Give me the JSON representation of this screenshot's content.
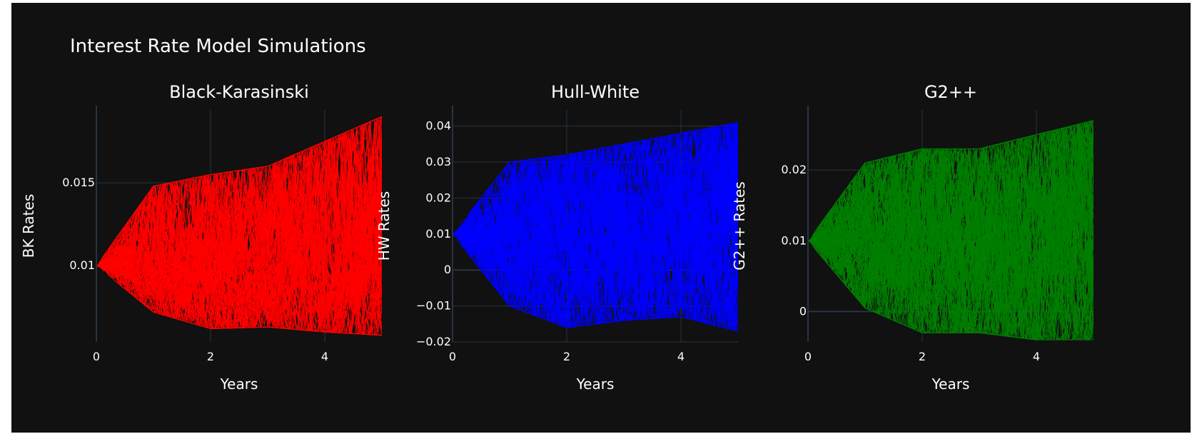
{
  "figure_title": "Interest Rate Model Simulations",
  "colors": {
    "background": "#111111",
    "grid": "#283442",
    "text": "#ffffff"
  },
  "chart_data": [
    {
      "type": "line",
      "title": "Black-Karasinski",
      "xlabel": "Years",
      "ylabel": "BK Rates",
      "xlim": [
        0,
        5
      ],
      "ylim": [
        0.0054,
        0.0194
      ],
      "xticks": [
        0,
        2,
        4
      ],
      "xtick_labels": [
        "0",
        "2",
        "4"
      ],
      "yticks": [
        0.01,
        0.015
      ],
      "ytick_labels": [
        "0.01",
        "0.015"
      ],
      "color": "#ff0000",
      "r0": 0.01,
      "num_paths": 100,
      "envelope_years": [
        0,
        1,
        2,
        3,
        4,
        5
      ],
      "envelope_upper": [
        0.01,
        0.0148,
        0.0155,
        0.016,
        0.0175,
        0.019
      ],
      "envelope_lower": [
        0.01,
        0.0072,
        0.0062,
        0.0063,
        0.006,
        0.0058
      ]
    },
    {
      "type": "line",
      "title": "Hull-White",
      "xlabel": "Years",
      "ylabel": "HW Rates",
      "xlim": [
        0,
        5
      ],
      "ylim": [
        -0.02,
        0.0445
      ],
      "xticks": [
        0,
        2,
        4
      ],
      "xtick_labels": [
        "0",
        "2",
        "4"
      ],
      "yticks": [
        -0.02,
        -0.01,
        0,
        0.01,
        0.02,
        0.03,
        0.04
      ],
      "ytick_labels": [
        "−0.02",
        "−0.01",
        "0",
        "0.01",
        "0.02",
        "0.03",
        "0.04"
      ],
      "color": "#0000ff",
      "r0": 0.01,
      "num_paths": 100,
      "envelope_years": [
        0,
        1,
        2,
        3,
        4,
        5
      ],
      "envelope_upper": [
        0.01,
        0.03,
        0.032,
        0.035,
        0.038,
        0.041
      ],
      "envelope_lower": [
        0.01,
        -0.01,
        -0.016,
        -0.014,
        -0.013,
        -0.017
      ]
    },
    {
      "type": "line",
      "title": "G2++",
      "xlabel": "Years",
      "ylabel": "G2++ Rates",
      "xlim": [
        0,
        5
      ],
      "ylim": [
        -0.0043,
        0.0285
      ],
      "xticks": [
        0,
        2,
        4
      ],
      "xtick_labels": [
        "0",
        "2",
        "4"
      ],
      "yticks": [
        0,
        0.01,
        0.02
      ],
      "ytick_labels": [
        "0",
        "0.01",
        "0.02"
      ],
      "color": "#008000",
      "r0": 0.01,
      "num_paths": 100,
      "envelope_years": [
        0,
        1,
        2,
        3,
        4,
        5
      ],
      "envelope_upper": [
        0.01,
        0.021,
        0.023,
        0.023,
        0.025,
        0.027
      ],
      "envelope_lower": [
        0.01,
        0.0005,
        -0.003,
        -0.003,
        -0.004,
        -0.004
      ]
    }
  ]
}
